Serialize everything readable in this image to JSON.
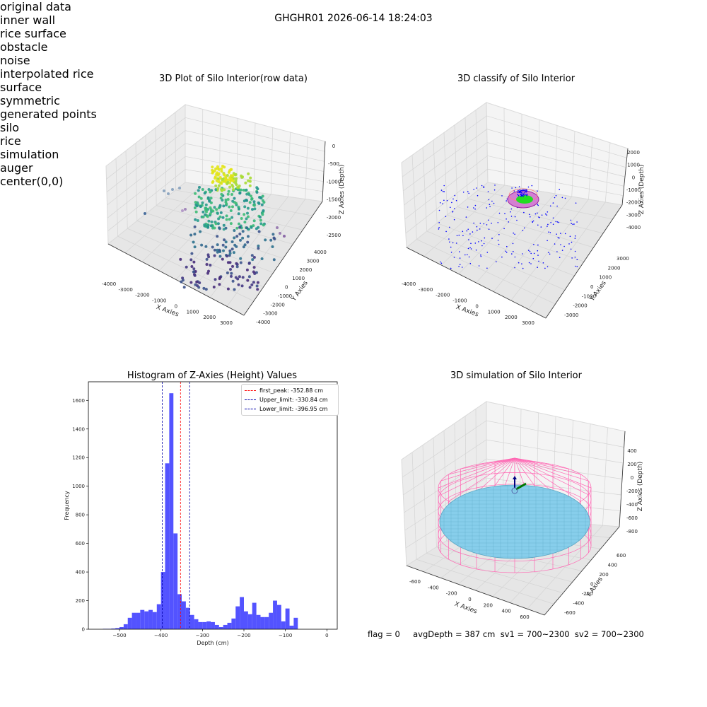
{
  "suptitle": "GHGHR01 2026-06-14 18:24:03",
  "panel1": {
    "title": "3D Plot of Silo Interior(row data)",
    "xlabel": "X Axies",
    "ylabel": "Y Axies",
    "zlabel": "Z Axies (Depth)",
    "xticks": [
      "-4000",
      "-3000",
      "-2000",
      "-1000",
      "0",
      "1000",
      "2000",
      "3000"
    ],
    "yticks": [
      "4000",
      "3000",
      "2000",
      "1000",
      "0",
      "-1000",
      "-2000",
      "-3000",
      "-4000"
    ],
    "zticks": [
      "0",
      "-500",
      "-1000",
      "-1500",
      "-2000",
      "-2500"
    ]
  },
  "panel2": {
    "title": "3D classify of Silo Interior",
    "xlabel": "X Axies",
    "ylabel": "Y Axies",
    "zlabel": "Z Axies (Depth)",
    "xticks": [
      "-4000",
      "-3000",
      "-2000",
      "-1000",
      "0",
      "1000",
      "2000",
      "3000"
    ],
    "yticks": [
      "3000",
      "2000",
      "1000",
      "0",
      "-1000",
      "-2000",
      "-3000"
    ],
    "zticks": [
      "2000",
      "1000",
      "0",
      "-1000",
      "-2000",
      "-3000",
      "-4000"
    ],
    "legend": [
      {
        "label": "original data",
        "color": "#b0b0b0"
      },
      {
        "label": "inner wall",
        "color": "#808080"
      },
      {
        "label": "rice surface",
        "color": "#00ff00"
      },
      {
        "label": "obstacle",
        "color": "#ff0000"
      },
      {
        "label": "noise",
        "color": "#0000ff"
      },
      {
        "label": "interpolated rice surface",
        "color": "#800080"
      },
      {
        "label": "symmetric generated points",
        "color": "#ffff00"
      }
    ]
  },
  "panel4": {
    "title": "3D simulation of Silo Interior",
    "xlabel": "X Axies",
    "ylabel": "Y Axies",
    "zlabel": "Z Axies (Depth)",
    "xticks": [
      "-600",
      "-400",
      "-200",
      "0",
      "200",
      "400",
      "600"
    ],
    "yticks": [
      "600",
      "400",
      "200",
      "0",
      "-200",
      "-400",
      "-600"
    ],
    "zticks": [
      "400",
      "200",
      "0",
      "-200",
      "-400",
      "-600",
      "-800"
    ],
    "legend": [
      {
        "label": "silo",
        "color": "#ff69b4"
      },
      {
        "label": "rice simulation",
        "color": "#87ceeb"
      },
      {
        "label": "auger",
        "color": "#ff4500"
      },
      {
        "label": "center(0,0)",
        "color": "#ffffff"
      }
    ]
  },
  "stats": "flag = 0     avgDepth = 387 cm  sv1 = 700~2300  sv2 = 700~2300",
  "chart_data": {
    "type": "bar",
    "title": "Histogram of Z-Axies (Height) Values",
    "xlabel": "Depth (cm)",
    "ylabel": "Frequency",
    "xlim": [
      -575,
      25
    ],
    "ylim": [
      0,
      1730
    ],
    "xticks": [
      -500,
      -400,
      -300,
      -200,
      -100,
      0
    ],
    "yticks": [
      0,
      200,
      400,
      600,
      800,
      1000,
      1200,
      1400,
      1600
    ],
    "bin_start": -540,
    "bin_width": 10,
    "color": "#4a4aff",
    "values": [
      3,
      3,
      5,
      8,
      15,
      35,
      80,
      115,
      115,
      135,
      125,
      135,
      120,
      175,
      400,
      1160,
      1650,
      670,
      245,
      195,
      150,
      100,
      70,
      50,
      50,
      55,
      50,
      30,
      15,
      30,
      45,
      75,
      160,
      225,
      125,
      105,
      185,
      100,
      85,
      85,
      115,
      200,
      170,
      55,
      145,
      25,
      80
    ],
    "series": [
      {
        "name": "",
        "values": []
      }
    ],
    "vlines": [
      {
        "label": "first_peak: -352.88 cm",
        "x": -352.88,
        "color": "#ff0000"
      },
      {
        "label": "Upper_limit: -330.84 cm",
        "x": -330.84,
        "color": "#0000aa"
      },
      {
        "label": "Lower_limit: -396.95 cm",
        "x": -396.95,
        "color": "#0000aa"
      }
    ]
  }
}
